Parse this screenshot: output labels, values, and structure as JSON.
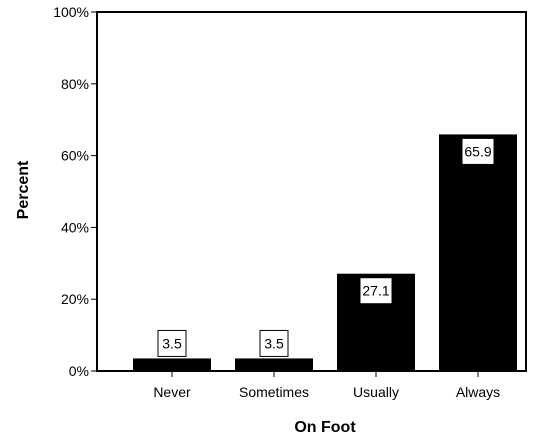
{
  "chart_data": {
    "type": "bar",
    "title": "",
    "xlabel": "On Foot",
    "ylabel": "Percent",
    "categories": [
      "Never",
      "Sometimes",
      "Usually",
      "Always"
    ],
    "values": [
      3.5,
      3.5,
      27.1,
      65.9
    ],
    "data_labels": [
      "3.5",
      "3.5",
      "27.1",
      "65.9"
    ],
    "ylim": [
      0,
      100
    ],
    "yticks": [
      0,
      20,
      40,
      60,
      80,
      100
    ],
    "ytick_labels": [
      "0%",
      "20%",
      "40%",
      "60%",
      "80%",
      "100%"
    ],
    "grid": false,
    "legend": "none",
    "bar_color": "#000000",
    "background_color": "#ffffff"
  }
}
